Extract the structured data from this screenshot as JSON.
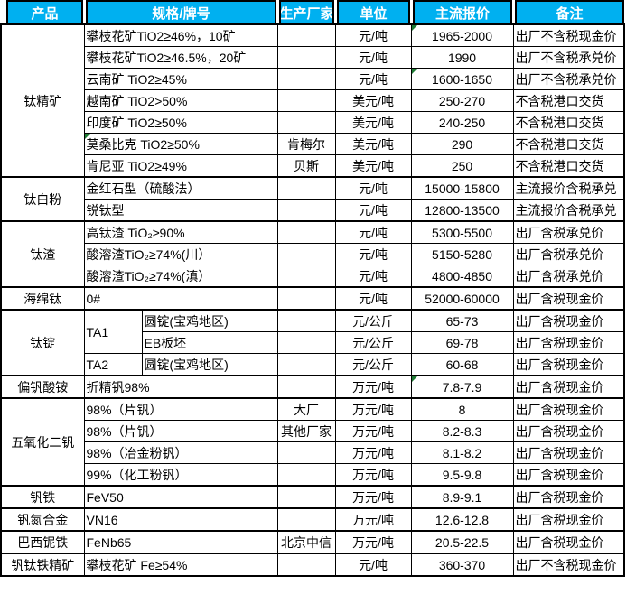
{
  "colors": {
    "header_bg": "#00B0F0",
    "header_text": "#FFFFFF",
    "grid_border": "#000000",
    "flag_green": "#1E7B34",
    "cell_text": "#000000",
    "page_bg": "#FFFFFF"
  },
  "table": {
    "headers": [
      "产品",
      "规格/牌号",
      "生产厂家",
      "单位",
      "主流报价",
      "备注"
    ],
    "rows": [
      {
        "group_start": true,
        "cells": [
          {
            "text": "钛精矿",
            "type": "product",
            "rowspan": 7
          },
          {
            "text": "攀枝花矿TiO2≥46%，10矿",
            "type": "spec",
            "colspan": 2
          },
          {
            "text": "",
            "type": "maker"
          },
          {
            "text": "元/吨",
            "type": "unit"
          },
          {
            "text": "1965-2000",
            "type": "price",
            "flag": true
          },
          {
            "text": "出厂不含税现金价",
            "type": "note"
          }
        ]
      },
      {
        "cells": [
          {
            "text": "攀枝花矿TiO2≥46.5%，20矿",
            "type": "spec",
            "colspan": 2
          },
          {
            "text": "",
            "type": "maker"
          },
          {
            "text": "元/吨",
            "type": "unit"
          },
          {
            "text": "1990",
            "type": "price"
          },
          {
            "text": "出厂不含税承兑价",
            "type": "note"
          }
        ]
      },
      {
        "cells": [
          {
            "text": "云南矿 TiO2≥45%",
            "type": "spec",
            "colspan": 2
          },
          {
            "text": "",
            "type": "maker"
          },
          {
            "text": "元/吨",
            "type": "unit"
          },
          {
            "text": "1600-1650",
            "type": "price",
            "flag": true
          },
          {
            "text": "出厂不含税承兑价",
            "type": "note"
          }
        ]
      },
      {
        "cells": [
          {
            "text": "越南矿 TiO2>50%",
            "type": "spec",
            "colspan": 2
          },
          {
            "text": "",
            "type": "maker"
          },
          {
            "text": "美元/吨",
            "type": "unit"
          },
          {
            "text": "250-270",
            "type": "price"
          },
          {
            "text": "不含税港口交货",
            "type": "note"
          }
        ]
      },
      {
        "cells": [
          {
            "text": "印度矿 TiO2≥50%",
            "type": "spec",
            "colspan": 2
          },
          {
            "text": "",
            "type": "maker"
          },
          {
            "text": "美元/吨",
            "type": "unit"
          },
          {
            "text": "240-250",
            "type": "price"
          },
          {
            "text": "不含税港口交货",
            "type": "note"
          }
        ]
      },
      {
        "cells": [
          {
            "text": "莫桑比克 TiO2≥50%",
            "type": "spec",
            "colspan": 2,
            "flag": true
          },
          {
            "text": "肯梅尔",
            "type": "maker"
          },
          {
            "text": "美元/吨",
            "type": "unit"
          },
          {
            "text": "290",
            "type": "price"
          },
          {
            "text": "不含税港口交货",
            "type": "note"
          }
        ]
      },
      {
        "cells": [
          {
            "text": "肯尼亚 TiO2≥49%",
            "type": "spec",
            "colspan": 2
          },
          {
            "text": "贝斯",
            "type": "maker"
          },
          {
            "text": "美元/吨",
            "type": "unit"
          },
          {
            "text": "250",
            "type": "price"
          },
          {
            "text": "不含税港口交货",
            "type": "note"
          }
        ]
      },
      {
        "group_start": true,
        "cells": [
          {
            "text": "钛白粉",
            "type": "product",
            "rowspan": 2
          },
          {
            "text": "金红石型（硫酸法）",
            "type": "spec",
            "colspan": 2
          },
          {
            "text": "",
            "type": "maker"
          },
          {
            "text": "元/吨",
            "type": "unit"
          },
          {
            "text": "15000-15800",
            "type": "price"
          },
          {
            "text": "主流报价含税承兑",
            "type": "note"
          }
        ]
      },
      {
        "cells": [
          {
            "text": "锐钛型",
            "type": "spec",
            "colspan": 2
          },
          {
            "text": "",
            "type": "maker"
          },
          {
            "text": "元/吨",
            "type": "unit"
          },
          {
            "text": "12800-13500",
            "type": "price"
          },
          {
            "text": "主流报价含税承兑",
            "type": "note"
          }
        ]
      },
      {
        "group_start": true,
        "cells": [
          {
            "text": "钛渣",
            "type": "product",
            "rowspan": 3
          },
          {
            "text": "高钛渣 TiO₂≥90%",
            "type": "spec",
            "colspan": 2
          },
          {
            "text": "",
            "type": "maker"
          },
          {
            "text": "元/吨",
            "type": "unit"
          },
          {
            "text": "5300-5500",
            "type": "price"
          },
          {
            "text": "出厂含税承兑价",
            "type": "note"
          }
        ]
      },
      {
        "cells": [
          {
            "text": "酸溶渣TiO₂≥74%(川）",
            "type": "spec",
            "colspan": 2
          },
          {
            "text": "",
            "type": "maker"
          },
          {
            "text": "元/吨",
            "type": "unit"
          },
          {
            "text": "5150-5280",
            "type": "price"
          },
          {
            "text": "出厂含税承兑价",
            "type": "note"
          }
        ]
      },
      {
        "cells": [
          {
            "text": "酸溶渣TiO₂≥74%(滇）",
            "type": "spec",
            "colspan": 2
          },
          {
            "text": "",
            "type": "maker"
          },
          {
            "text": "元/吨",
            "type": "unit"
          },
          {
            "text": "4800-4850",
            "type": "price"
          },
          {
            "text": "出厂含税承兑价",
            "type": "note"
          }
        ]
      },
      {
        "group_start": true,
        "cells": [
          {
            "text": "海绵钛",
            "type": "product"
          },
          {
            "text": "0#",
            "type": "spec",
            "colspan": 2
          },
          {
            "text": "",
            "type": "maker"
          },
          {
            "text": "元/吨",
            "type": "unit"
          },
          {
            "text": "52000-60000",
            "type": "price"
          },
          {
            "text": "出厂含税现金价",
            "type": "note"
          }
        ]
      },
      {
        "group_start": true,
        "cells": [
          {
            "text": "钛锭",
            "type": "product",
            "rowspan": 3
          },
          {
            "text": "TA1",
            "type": "speca",
            "rowspan": 2
          },
          {
            "text": "圆锭(宝鸡地区)",
            "type": "specb"
          },
          {
            "text": "",
            "type": "maker"
          },
          {
            "text": "元/公斤",
            "type": "unit"
          },
          {
            "text": "65-73",
            "type": "price"
          },
          {
            "text": "出厂含税现金价",
            "type": "note"
          }
        ]
      },
      {
        "cells": [
          {
            "text": "EB板坯",
            "type": "specb"
          },
          {
            "text": "",
            "type": "maker"
          },
          {
            "text": "元/公斤",
            "type": "unit"
          },
          {
            "text": "69-78",
            "type": "price"
          },
          {
            "text": "出厂含税现金价",
            "type": "note"
          }
        ]
      },
      {
        "cells": [
          {
            "text": "TA2",
            "type": "speca"
          },
          {
            "text": "圆锭(宝鸡地区)",
            "type": "specb"
          },
          {
            "text": "",
            "type": "maker"
          },
          {
            "text": "元/公斤",
            "type": "unit"
          },
          {
            "text": "60-68",
            "type": "price"
          },
          {
            "text": "出厂含税现金价",
            "type": "note"
          }
        ]
      },
      {
        "group_start": true,
        "cells": [
          {
            "text": "偏钒酸铵",
            "type": "product"
          },
          {
            "text": "折精钒98%",
            "type": "spec",
            "colspan": 2
          },
          {
            "text": "",
            "type": "maker"
          },
          {
            "text": "万元/吨",
            "type": "unit"
          },
          {
            "text": "7.8-7.9",
            "type": "price",
            "flag": true
          },
          {
            "text": "出厂含税现金价",
            "type": "note"
          }
        ]
      },
      {
        "group_start": true,
        "cells": [
          {
            "text": "五氧化二钒",
            "type": "product",
            "rowspan": 4
          },
          {
            "text": "98%（片钒）",
            "type": "spec",
            "colspan": 2
          },
          {
            "text": "大厂",
            "type": "maker"
          },
          {
            "text": "万元/吨",
            "type": "unit"
          },
          {
            "text": "8",
            "type": "price"
          },
          {
            "text": "出厂含税现金价",
            "type": "note"
          }
        ]
      },
      {
        "cells": [
          {
            "text": "98%（片钒）",
            "type": "spec",
            "colspan": 2
          },
          {
            "text": "其他厂家",
            "type": "maker"
          },
          {
            "text": "万元/吨",
            "type": "unit"
          },
          {
            "text": "8.2-8.3",
            "type": "price"
          },
          {
            "text": "出厂含税现金价",
            "type": "note"
          }
        ]
      },
      {
        "cells": [
          {
            "text": "98%（冶金粉钒）",
            "type": "spec",
            "colspan": 2
          },
          {
            "text": "",
            "type": "maker"
          },
          {
            "text": "万元/吨",
            "type": "unit"
          },
          {
            "text": "8.1-8.2",
            "type": "price"
          },
          {
            "text": "出厂含税现金价",
            "type": "note"
          }
        ]
      },
      {
        "cells": [
          {
            "text": "99%（化工粉钒）",
            "type": "spec",
            "colspan": 2
          },
          {
            "text": "",
            "type": "maker"
          },
          {
            "text": "万元/吨",
            "type": "unit"
          },
          {
            "text": "9.5-9.8",
            "type": "price"
          },
          {
            "text": "出厂含税现金价",
            "type": "note"
          }
        ]
      },
      {
        "group_start": true,
        "cells": [
          {
            "text": "钒铁",
            "type": "product"
          },
          {
            "text": "FeV50",
            "type": "spec",
            "colspan": 2
          },
          {
            "text": "",
            "type": "maker"
          },
          {
            "text": "万元/吨",
            "type": "unit"
          },
          {
            "text": "8.9-9.1",
            "type": "price"
          },
          {
            "text": "出厂含税现金价",
            "type": "note"
          }
        ]
      },
      {
        "group_start": true,
        "cells": [
          {
            "text": "钒氮合金",
            "type": "product"
          },
          {
            "text": "VN16",
            "type": "spec",
            "colspan": 2
          },
          {
            "text": "",
            "type": "maker"
          },
          {
            "text": "万元/吨",
            "type": "unit"
          },
          {
            "text": "12.6-12.8",
            "type": "price"
          },
          {
            "text": "出厂含税现金价",
            "type": "note"
          }
        ]
      },
      {
        "group_start": true,
        "cells": [
          {
            "text": "巴西铌铁",
            "type": "product"
          },
          {
            "text": "FeNb65",
            "type": "spec",
            "colspan": 2
          },
          {
            "text": "北京中信",
            "type": "maker"
          },
          {
            "text": "万元/吨",
            "type": "unit"
          },
          {
            "text": "20.5-22.5",
            "type": "price"
          },
          {
            "text": "出厂含税现金价",
            "type": "note"
          }
        ]
      },
      {
        "group_start": true,
        "cells": [
          {
            "text": "钒钛铁精矿",
            "type": "product"
          },
          {
            "text": "攀枝花矿 Fe≥54%",
            "type": "spec",
            "colspan": 2
          },
          {
            "text": "",
            "type": "maker"
          },
          {
            "text": "元/吨",
            "type": "unit"
          },
          {
            "text": "360-370",
            "type": "price"
          },
          {
            "text": "出厂不含税现金价",
            "type": "note"
          }
        ]
      }
    ]
  }
}
